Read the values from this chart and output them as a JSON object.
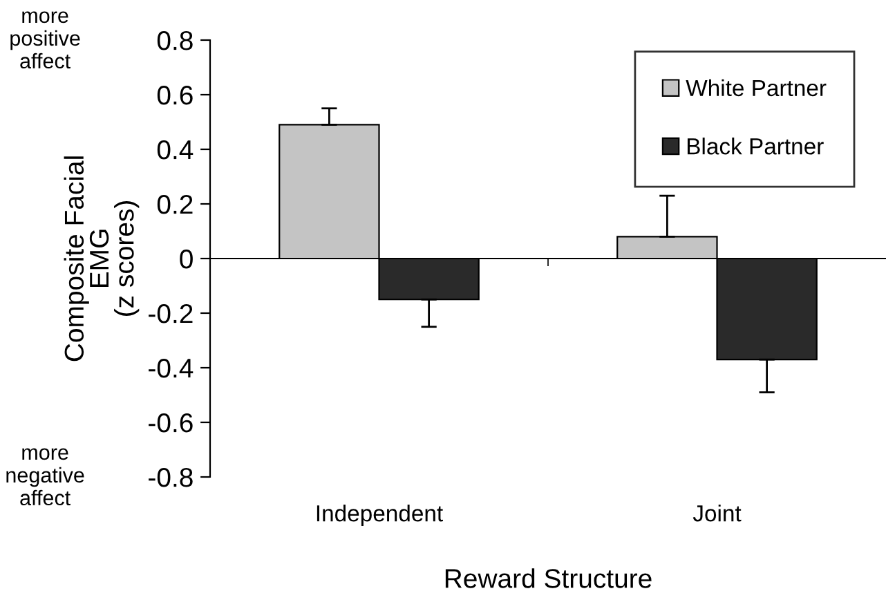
{
  "chart_data": {
    "type": "bar",
    "xlabel": "Reward Structure",
    "ylabel": "Composite Facial\nEMG\n(z scores)",
    "categories": [
      "Independent",
      "Joint"
    ],
    "series": [
      {
        "name": "White Partner",
        "color": "#c4c4c4",
        "values": [
          0.49,
          0.08
        ],
        "errors": [
          [
            0.49,
            0.55
          ],
          [
            0.08,
            0.23
          ]
        ]
      },
      {
        "name": "Black Partner",
        "color": "#2a2a2a",
        "values": [
          -0.15,
          -0.37
        ],
        "errors": [
          [
            -0.25,
            -0.15
          ],
          [
            -0.49,
            -0.37
          ]
        ]
      }
    ],
    "ylim": [
      -0.8,
      0.8
    ],
    "yticks": [
      -0.8,
      -0.6,
      -0.4,
      -0.2,
      0,
      0.2,
      0.4,
      0.6,
      0.8
    ],
    "annotations": [
      "more\npositive\naffect",
      "more\nnegative\naffect"
    ],
    "legend": "top right"
  }
}
